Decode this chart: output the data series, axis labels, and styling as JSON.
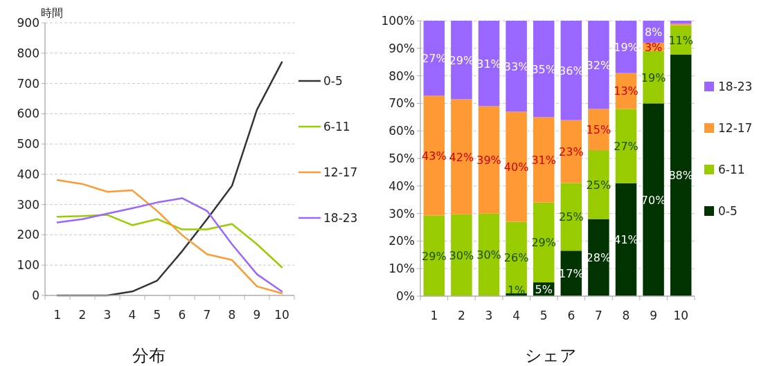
{
  "chart_data": [
    {
      "type": "line",
      "title": "分布",
      "ylabel": "時間",
      "categories": [
        "1",
        "2",
        "3",
        "4",
        "5",
        "6",
        "7",
        "8",
        "9",
        "10"
      ],
      "series": [
        {
          "name": "0-5",
          "color": "#333333",
          "values": [
            0,
            0,
            0,
            13,
            49,
            146,
            252,
            362,
            613,
            770
          ]
        },
        {
          "name": "6-11",
          "color": "#99cc00",
          "values": [
            260,
            262,
            266,
            232,
            252,
            218,
            218,
            236,
            169,
            93
          ]
        },
        {
          "name": "12-17",
          "color": "#ff9933",
          "values": [
            381,
            368,
            342,
            347,
            279,
            199,
            136,
            117,
            30,
            7
          ]
        },
        {
          "name": "18-23",
          "color": "#9966ff",
          "values": [
            241,
            252,
            270,
            288,
            307,
            321,
            279,
            169,
            70,
            13
          ]
        }
      ],
      "ylim": [
        0,
        900
      ],
      "yticks": [
        0,
        100,
        200,
        300,
        400,
        500,
        600,
        700,
        800,
        900
      ],
      "grid": "y",
      "legend": "right"
    },
    {
      "type": "bar",
      "stacked": true,
      "title": "シェア",
      "categories": [
        "1",
        "2",
        "3",
        "4",
        "5",
        "6",
        "7",
        "8",
        "9",
        "10"
      ],
      "series": [
        {
          "name": "0-5",
          "color": "#003300",
          "values": [
            0,
            0,
            0,
            1,
            5,
            16.5,
            28,
            41,
            70,
            87.7
          ],
          "value_labels": [
            null,
            null,
            null,
            "1%",
            "5%",
            "17%",
            "28%",
            "41%",
            "70%",
            "88%"
          ]
        },
        {
          "name": "6-11",
          "color": "#99cc00",
          "values": [
            29.3,
            29.7,
            30,
            26,
            29,
            24.6,
            25,
            27,
            19,
            10.6
          ],
          "value_labels": [
            "29%",
            "30%",
            "30%",
            "26%",
            "29%",
            "25%",
            "25%",
            "27%",
            "19%",
            "11%"
          ]
        },
        {
          "name": "12-17",
          "color": "#ff9933",
          "values": [
            43.5,
            41.8,
            39,
            40,
            31,
            22.8,
            15,
            13,
            3,
            0.6
          ],
          "value_labels": [
            "43%",
            "42%",
            "39%",
            "40%",
            "31%",
            "23%",
            "15%",
            "13%",
            "3%",
            null
          ]
        },
        {
          "name": "18-23",
          "color": "#9966ff",
          "values": [
            27.2,
            28.5,
            31,
            33,
            35,
            36.1,
            32,
            19,
            8,
            1.1
          ],
          "value_labels": [
            "27%",
            "29%",
            "31%",
            "33%",
            "35%",
            "36%",
            "32%",
            "19%",
            "8%",
            null
          ]
        }
      ],
      "ylim": [
        0,
        100
      ],
      "yticks": [
        {
          "value": 0,
          "label": "0%"
        },
        {
          "value": 10,
          "label": "10%"
        },
        {
          "value": 20,
          "label": "20%"
        },
        {
          "value": 30,
          "label": "30%"
        },
        {
          "value": 40,
          "label": "40%"
        },
        {
          "value": 50,
          "label": "50%"
        },
        {
          "value": 60,
          "label": "60%"
        },
        {
          "value": 70,
          "label": "70%"
        },
        {
          "value": 80,
          "label": "80%"
        },
        {
          "value": 90,
          "label": "90%"
        },
        {
          "value": 100,
          "label": "100%"
        }
      ],
      "grid": "y",
      "legend": "right"
    }
  ]
}
